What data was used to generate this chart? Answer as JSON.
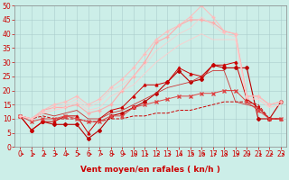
{
  "xlabel": "Vent moyen/en rafales ( kn/h )",
  "background_color": "#cceee8",
  "grid_color": "#aacccc",
  "xlim": [
    -0.5,
    23.5
  ],
  "ylim": [
    0,
    50
  ],
  "yticks": [
    0,
    5,
    10,
    15,
    20,
    25,
    30,
    35,
    40,
    45,
    50
  ],
  "xticks": [
    0,
    1,
    2,
    3,
    4,
    5,
    6,
    7,
    8,
    9,
    10,
    11,
    12,
    13,
    14,
    15,
    16,
    17,
    18,
    19,
    20,
    21,
    22,
    23
  ],
  "series": [
    {
      "x": [
        0,
        1,
        2,
        3,
        4,
        5,
        6,
        7,
        8,
        9,
        10,
        11,
        12,
        13,
        14,
        15,
        16,
        17,
        18,
        19,
        20,
        21,
        22,
        23
      ],
      "y": [
        11,
        6,
        9,
        8,
        8,
        8,
        3,
        6,
        11,
        12,
        14,
        16,
        19,
        23,
        27,
        23,
        24,
        29,
        28,
        28,
        28,
        10,
        10,
        16
      ],
      "color": "#bb0000",
      "linewidth": 0.8,
      "marker": "D",
      "markersize": 2,
      "linestyle": "-"
    },
    {
      "x": [
        0,
        1,
        2,
        3,
        4,
        5,
        6,
        7,
        8,
        9,
        10,
        11,
        12,
        13,
        14,
        15,
        16,
        17,
        18,
        19,
        20,
        21,
        22,
        23
      ],
      "y": [
        11,
        6,
        9,
        9,
        11,
        11,
        5,
        10,
        13,
        14,
        18,
        22,
        22,
        23,
        28,
        26,
        25,
        29,
        29,
        30,
        17,
        14,
        10,
        10
      ],
      "color": "#cc0000",
      "linewidth": 0.7,
      "marker": "^",
      "markersize": 2,
      "linestyle": "-"
    },
    {
      "x": [
        0,
        1,
        2,
        3,
        4,
        5,
        6,
        7,
        8,
        9,
        10,
        11,
        12,
        13,
        14,
        15,
        16,
        17,
        18,
        19,
        20,
        21,
        22,
        23
      ],
      "y": [
        11,
        10,
        11,
        10,
        10,
        10,
        9,
        9,
        10,
        10,
        11,
        11,
        12,
        12,
        13,
        13,
        14,
        15,
        16,
        16,
        16,
        15,
        10,
        10
      ],
      "color": "#cc0000",
      "linewidth": 0.7,
      "marker": null,
      "markersize": 0,
      "linestyle": "--"
    },
    {
      "x": [
        0,
        1,
        2,
        3,
        4,
        5,
        6,
        7,
        8,
        9,
        10,
        11,
        12,
        13,
        14,
        15,
        16,
        17,
        18,
        19,
        20,
        21,
        22,
        23
      ],
      "y": [
        11,
        9,
        10,
        10,
        11,
        10,
        9,
        9,
        11,
        11,
        14,
        15,
        16,
        17,
        18,
        18,
        19,
        19,
        20,
        20,
        16,
        13,
        10,
        10
      ],
      "color": "#dd4444",
      "linewidth": 0.7,
      "marker": "x",
      "markersize": 2.5,
      "linestyle": "-"
    },
    {
      "x": [
        0,
        1,
        2,
        3,
        4,
        5,
        6,
        7,
        8,
        9,
        10,
        11,
        12,
        13,
        14,
        15,
        16,
        17,
        18,
        19,
        20,
        21,
        22,
        23
      ],
      "y": [
        11,
        10,
        12,
        11,
        12,
        13,
        10,
        10,
        12,
        13,
        15,
        17,
        19,
        21,
        22,
        23,
        25,
        27,
        27,
        16,
        15,
        14,
        10,
        10
      ],
      "color": "#cc3333",
      "linewidth": 0.6,
      "marker": null,
      "markersize": 0,
      "linestyle": "-"
    },
    {
      "x": [
        0,
        1,
        2,
        3,
        4,
        5,
        6,
        7,
        8,
        9,
        10,
        11,
        12,
        13,
        14,
        15,
        16,
        17,
        18,
        19,
        20,
        21,
        22,
        23
      ],
      "y": [
        11,
        10,
        13,
        14,
        14,
        15,
        12,
        13,
        15,
        20,
        25,
        30,
        37,
        39,
        43,
        45,
        45,
        44,
        41,
        40,
        18,
        18,
        15,
        16
      ],
      "color": "#ffaaaa",
      "linewidth": 0.8,
      "marker": "+",
      "markersize": 3,
      "linestyle": "-"
    },
    {
      "x": [
        0,
        1,
        2,
        3,
        4,
        5,
        6,
        7,
        8,
        9,
        10,
        11,
        12,
        13,
        14,
        15,
        16,
        17,
        18,
        19,
        20,
        21,
        22,
        23
      ],
      "y": [
        11,
        10,
        13,
        15,
        16,
        18,
        15,
        17,
        21,
        24,
        28,
        33,
        38,
        41,
        43,
        46,
        50,
        46,
        41,
        40,
        18,
        18,
        15,
        16
      ],
      "color": "#ffbbbb",
      "linewidth": 0.7,
      "marker": "+",
      "markersize": 2.5,
      "linestyle": "-"
    },
    {
      "x": [
        0,
        1,
        2,
        3,
        4,
        5,
        6,
        7,
        8,
        9,
        10,
        11,
        12,
        13,
        14,
        15,
        16,
        17,
        18,
        19,
        20,
        21,
        22,
        23
      ],
      "y": [
        11,
        10,
        12,
        13,
        14,
        16,
        13,
        14,
        18,
        20,
        22,
        26,
        30,
        33,
        36,
        38,
        40,
        38,
        38,
        38,
        17,
        17,
        14,
        15
      ],
      "color": "#ffcccc",
      "linewidth": 0.6,
      "marker": null,
      "markersize": 0,
      "linestyle": "-"
    },
    {
      "x": [
        0,
        1,
        2,
        3,
        4,
        5,
        6,
        7,
        8,
        9,
        10,
        11,
        12,
        13,
        14,
        15,
        16,
        17,
        18,
        19,
        20,
        21,
        22,
        23
      ],
      "y": [
        11,
        10,
        12,
        14,
        15,
        17,
        14,
        16,
        20,
        22,
        25,
        29,
        34,
        37,
        40,
        42,
        46,
        43,
        40,
        39,
        17,
        17,
        14,
        15
      ],
      "color": "#ffcccc",
      "linewidth": 0.5,
      "marker": null,
      "markersize": 0,
      "linestyle": "-"
    }
  ],
  "wind_arrows_color": "#cc0000",
  "xlabel_color": "#cc0000",
  "xlabel_fontsize": 6.5,
  "tick_color": "#cc0000",
  "tick_fontsize": 5.5,
  "spine_color": "#888888"
}
